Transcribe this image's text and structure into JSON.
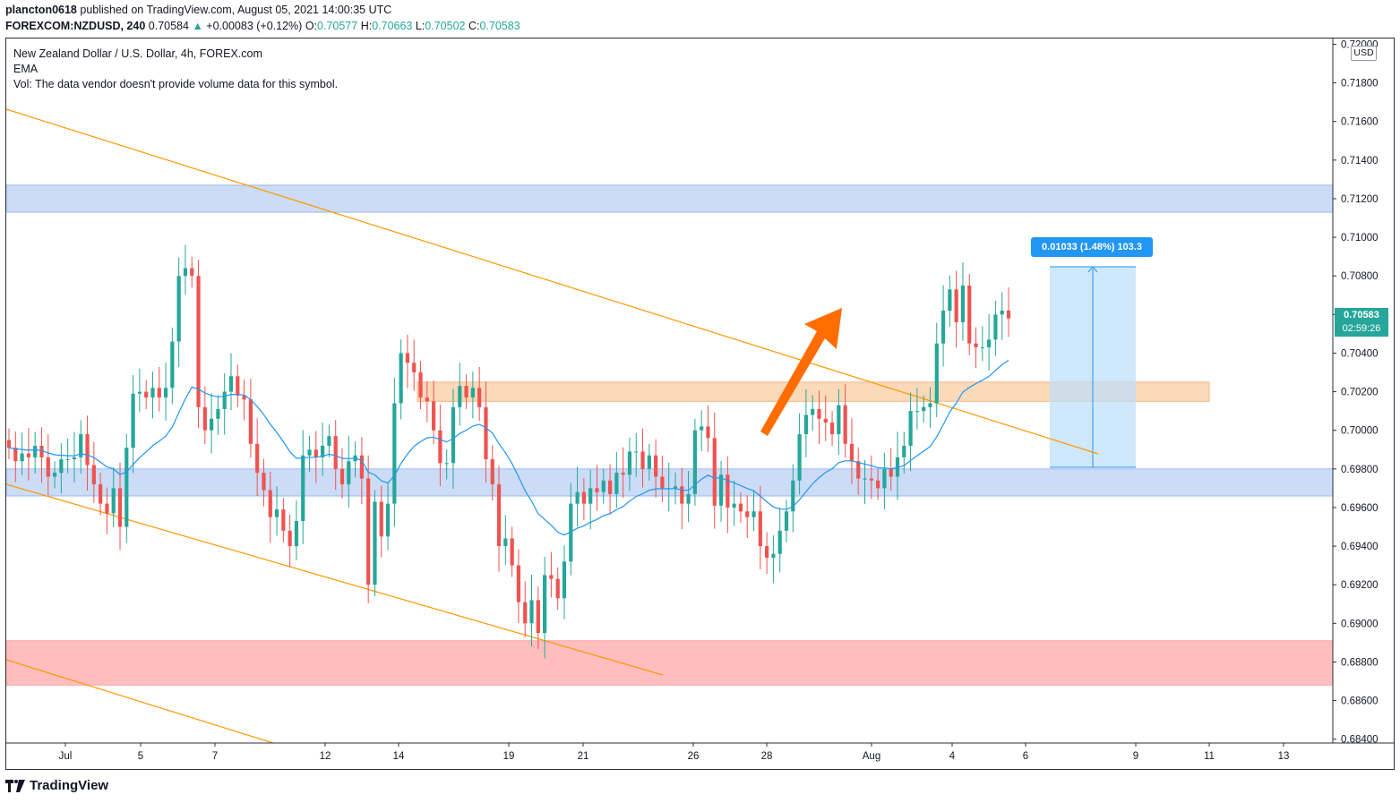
{
  "header": {
    "author": "plancton0618",
    "publish_line": " published on TradingView.com, August 05, 2021 14:00:35 UTC",
    "symbol": "FOREXCOM:NZDUSD, 240",
    "last": "0.70584",
    "change": "+0.00083 (+0.12%)",
    "o_label": "O:",
    "o_val": "0.70577",
    "h_label": "H:",
    "h_val": "0.70663",
    "l_label": "L:",
    "l_val": "0.70502",
    "c_label": "C:",
    "c_val": "0.70583"
  },
  "legend": {
    "title": "New Zealand Dollar / U.S. Dollar, 4h, FOREX.com",
    "ema": "EMA",
    "vol": "Vol: The data vendor doesn't provide volume data for this symbol."
  },
  "price_scale": {
    "currency": "USD",
    "last_price": "0.70583",
    "countdown": "02:59:26"
  },
  "measure_label": "0.01033 (1.48%) 103.3",
  "brand": "TradingView",
  "colors": {
    "up": "#26a69a",
    "down": "#ef5350",
    "trendline": "#ff9800",
    "ema": "#2196f3",
    "zone_blue": "#c7d9f7",
    "zone_orange": "#fbd5b2",
    "zone_red": "#ffb7b7",
    "arrow": "#ff6d00"
  },
  "chart_data": {
    "type": "candlestick",
    "y_ticks": [
      "0.72000",
      "0.71800",
      "0.71600",
      "0.71400",
      "0.71200",
      "0.71000",
      "0.70800",
      "0.70600",
      "0.70400",
      "0.70200",
      "0.70000",
      "0.69800",
      "0.69600",
      "0.69400",
      "0.69200",
      "0.69000",
      "0.68800",
      "0.68600",
      "0.68400"
    ],
    "x_ticks": [
      "Jul",
      "5",
      "7",
      "12",
      "14",
      "19",
      "21",
      "26",
      "28",
      "Aug",
      "4",
      "6",
      "9",
      "11",
      "13"
    ],
    "ylim": [
      0.6838,
      0.7203
    ],
    "zones": [
      {
        "name": "resistance-zone",
        "color": "blue",
        "from": 0.7113,
        "to": 0.7127
      },
      {
        "name": "support-zone",
        "color": "blue",
        "from": 0.6966,
        "to": 0.698
      },
      {
        "name": "breakout-zone",
        "color": "orange",
        "from": 0.7015,
        "to": 0.7025
      },
      {
        "name": "demand-zone",
        "color": "red",
        "from": 0.6868,
        "to": 0.6891
      }
    ],
    "closes": [
      0.6991,
      0.6984,
      0.6988,
      0.6986,
      0.6992,
      0.6986,
      0.6976,
      0.6978,
      0.6985,
      0.6985,
      0.6986,
      0.6998,
      0.6982,
      0.6972,
      0.6962,
      0.6957,
      0.697,
      0.695,
      0.6991,
      0.7019,
      0.702,
      0.7017,
      0.7022,
      0.7017,
      0.7022,
      0.7046,
      0.708,
      0.7084,
      0.708,
      0.7012,
      0.7,
      0.7006,
      0.7011,
      0.702,
      0.7028,
      0.7018,
      0.7016,
      0.6993,
      0.6978,
      0.6969,
      0.6955,
      0.6959,
      0.6948,
      0.694,
      0.6953,
      0.6987,
      0.699,
      0.6986,
      0.6992,
      0.6997,
      0.698,
      0.6972,
      0.6984,
      0.6987,
      0.6975,
      0.692,
      0.6963,
      0.6945,
      0.6962,
      0.7014,
      0.704,
      0.7035,
      0.703,
      0.7017,
      0.7015,
      0.7,
      0.6983,
      0.6983,
      0.7012,
      0.7023,
      0.7017,
      0.7022,
      0.7012,
      0.6985,
      0.6972,
      0.694,
      0.6944,
      0.693,
      0.6911,
      0.69,
      0.6912,
      0.6895,
      0.6925,
      0.6923,
      0.6913,
      0.6932,
      0.6962,
      0.6968,
      0.6962,
      0.697,
      0.6968,
      0.6974,
      0.6967,
      0.6978,
      0.6977,
      0.6989,
      0.6989,
      0.698,
      0.6987,
      0.6976,
      0.697,
      0.697,
      0.6971,
      0.6962,
      0.6967,
      0.7,
      0.7002,
      0.6996,
      0.6961,
      0.6977,
      0.696,
      0.6962,
      0.6958,
      0.6955,
      0.6958,
      0.694,
      0.6934,
      0.6936,
      0.6948,
      0.6958,
      0.6974,
      0.6998,
      0.7008,
      0.7011,
      0.7006,
      0.7004,
      0.6998,
      0.7013,
      0.6993,
      0.6984,
      0.6975,
      0.6975,
      0.6974,
      0.697,
      0.698,
      0.6976,
      0.6986,
      0.6992,
      0.701,
      0.701,
      0.7012,
      0.7014,
      0.7045,
      0.7062,
      0.7073,
      0.7056,
      0.7075,
      0.7045,
      0.7043,
      0.7043,
      0.7047,
      0.706,
      0.7062,
      0.7058
    ]
  }
}
